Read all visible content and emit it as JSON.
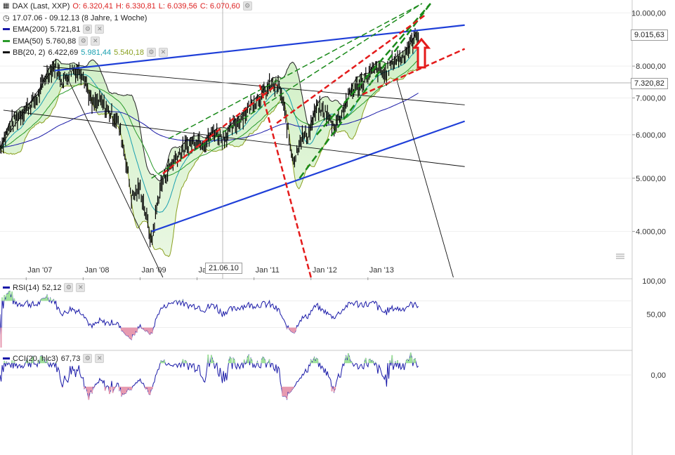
{
  "header": {
    "title": "DAX (Last, XXP)",
    "open": "O: 6.320,41",
    "high": "H: 6.330,81",
    "low": "L: 6.039,56",
    "close": "C: 6.070,60",
    "range": "17.07.06 - 09.12.13 (8 Jahre, 1 Woche)"
  },
  "legend": {
    "ema200": {
      "label": "EMA(200)",
      "value": "5.721,81",
      "color": "#1a1aa8"
    },
    "ema50": {
      "label": "EMA(50)",
      "value": "5.760,88",
      "color": "#2a9a2a"
    },
    "bb": {
      "label": "BB(20, 2)",
      "value": "6.422,69",
      "mid": "5.981,44",
      "lower": "5.540,18",
      "color": "#111111",
      "mid_color": "#1aa0b0",
      "lower_color": "#8aa020"
    }
  },
  "price_labels": {
    "last": "9.015,63",
    "cross": "7.320,82"
  },
  "crosshair_date": "21.06.10",
  "rsi_panel": {
    "label": "RSI(14)",
    "value": "52,12",
    "ticks": [
      "100,00",
      "50,00"
    ]
  },
  "cci_panel": {
    "label": "CCI(20, hlc3)",
    "value": "67,73",
    "ticks": [
      "0,00"
    ]
  },
  "icons": {
    "chart_type": "candlestick-icon",
    "period": "clock-icon",
    "settings": "gear-icon",
    "close": "close-icon",
    "scroll": "scroll-down-icon"
  },
  "chart_data": {
    "type": "line",
    "y_axis": {
      "scale": "log",
      "ticks": [
        4000,
        5000,
        6000,
        7000,
        8000,
        10000
      ],
      "tick_labels": [
        "4.000,00",
        "5.000,00",
        "6.000,00",
        "7.000,00",
        "8.000,00",
        "10.000,00"
      ],
      "ylim": [
        3300,
        10400
      ]
    },
    "x_axis": {
      "tick_labels": [
        "Jan '07",
        "Jan '08",
        "Jan '09",
        "Jan '10",
        "Jan '11",
        "Jan '12",
        "Jan '13"
      ],
      "range": [
        "2006-07-17",
        "2013-12-09"
      ]
    },
    "series": [
      {
        "name": "DAX",
        "x": [
          2006.54,
          2006.75,
          2007.0,
          2007.2,
          2007.35,
          2007.5,
          2007.65,
          2007.8,
          2008.0,
          2008.15,
          2008.3,
          2008.45,
          2008.6,
          2008.75,
          2008.85,
          2009.0,
          2009.12,
          2009.2,
          2009.35,
          2009.5,
          2009.65,
          2009.8,
          2010.0,
          2010.15,
          2010.3,
          2010.45,
          2010.6,
          2010.75,
          2010.9,
          2011.0,
          2011.15,
          2011.3,
          2011.45,
          2011.55,
          2011.65,
          2011.72,
          2011.8,
          2011.95,
          2012.1,
          2012.25,
          2012.4,
          2012.55,
          2012.7,
          2012.85,
          2013.0,
          2013.15,
          2013.3,
          2013.45,
          2013.6,
          2013.75,
          2013.9
        ],
        "y": [
          5700,
          6300,
          6700,
          7000,
          7700,
          8000,
          7500,
          7900,
          7800,
          6800,
          6900,
          6600,
          6400,
          5400,
          4600,
          4800,
          4200,
          3800,
          4800,
          5200,
          5500,
          5700,
          5900,
          5800,
          6100,
          5900,
          6150,
          6400,
          6700,
          6900,
          7100,
          7400,
          7300,
          6500,
          5600,
          5400,
          5900,
          6000,
          6700,
          6600,
          6200,
          6600,
          7200,
          7400,
          7700,
          7900,
          7700,
          8200,
          8300,
          8800,
          9200
        ]
      }
    ]
  }
}
